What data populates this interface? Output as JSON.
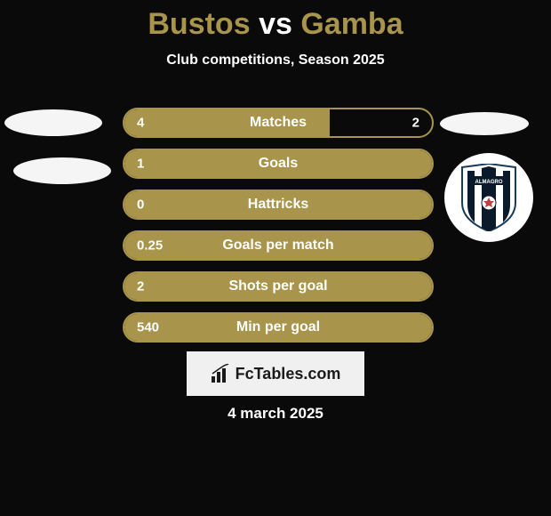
{
  "title": {
    "player1": "Bustos",
    "vs": "vs",
    "player2": "Gamba"
  },
  "subtitle": "Club competitions, Season 2025",
  "colors": {
    "background": "#0a0a0a",
    "accent": "#a8944a",
    "text": "#ffffff",
    "badge_bg": "#f0f0f0",
    "badge_text": "#1a1a1a"
  },
  "stats": [
    {
      "label": "Matches",
      "left_value": "4",
      "right_value": "2",
      "fill_percent": 66.7
    },
    {
      "label": "Goals",
      "left_value": "1",
      "right_value": "",
      "fill_percent": 100
    },
    {
      "label": "Hattricks",
      "left_value": "0",
      "right_value": "",
      "fill_percent": 100
    },
    {
      "label": "Goals per match",
      "left_value": "0.25",
      "right_value": "",
      "fill_percent": 100
    },
    {
      "label": "Shots per goal",
      "left_value": "2",
      "right_value": "",
      "fill_percent": 100
    },
    {
      "label": "Min per goal",
      "left_value": "540",
      "right_value": "",
      "fill_percent": 100
    }
  ],
  "badge": {
    "text": "FcTables.com"
  },
  "date": "4 march 2025",
  "team": {
    "name": "ALMAGRO",
    "shield_colors": {
      "stripe_dark": "#0a1a2a",
      "stripe_light": "#ffffff",
      "outline": "#1a3a5a"
    }
  }
}
